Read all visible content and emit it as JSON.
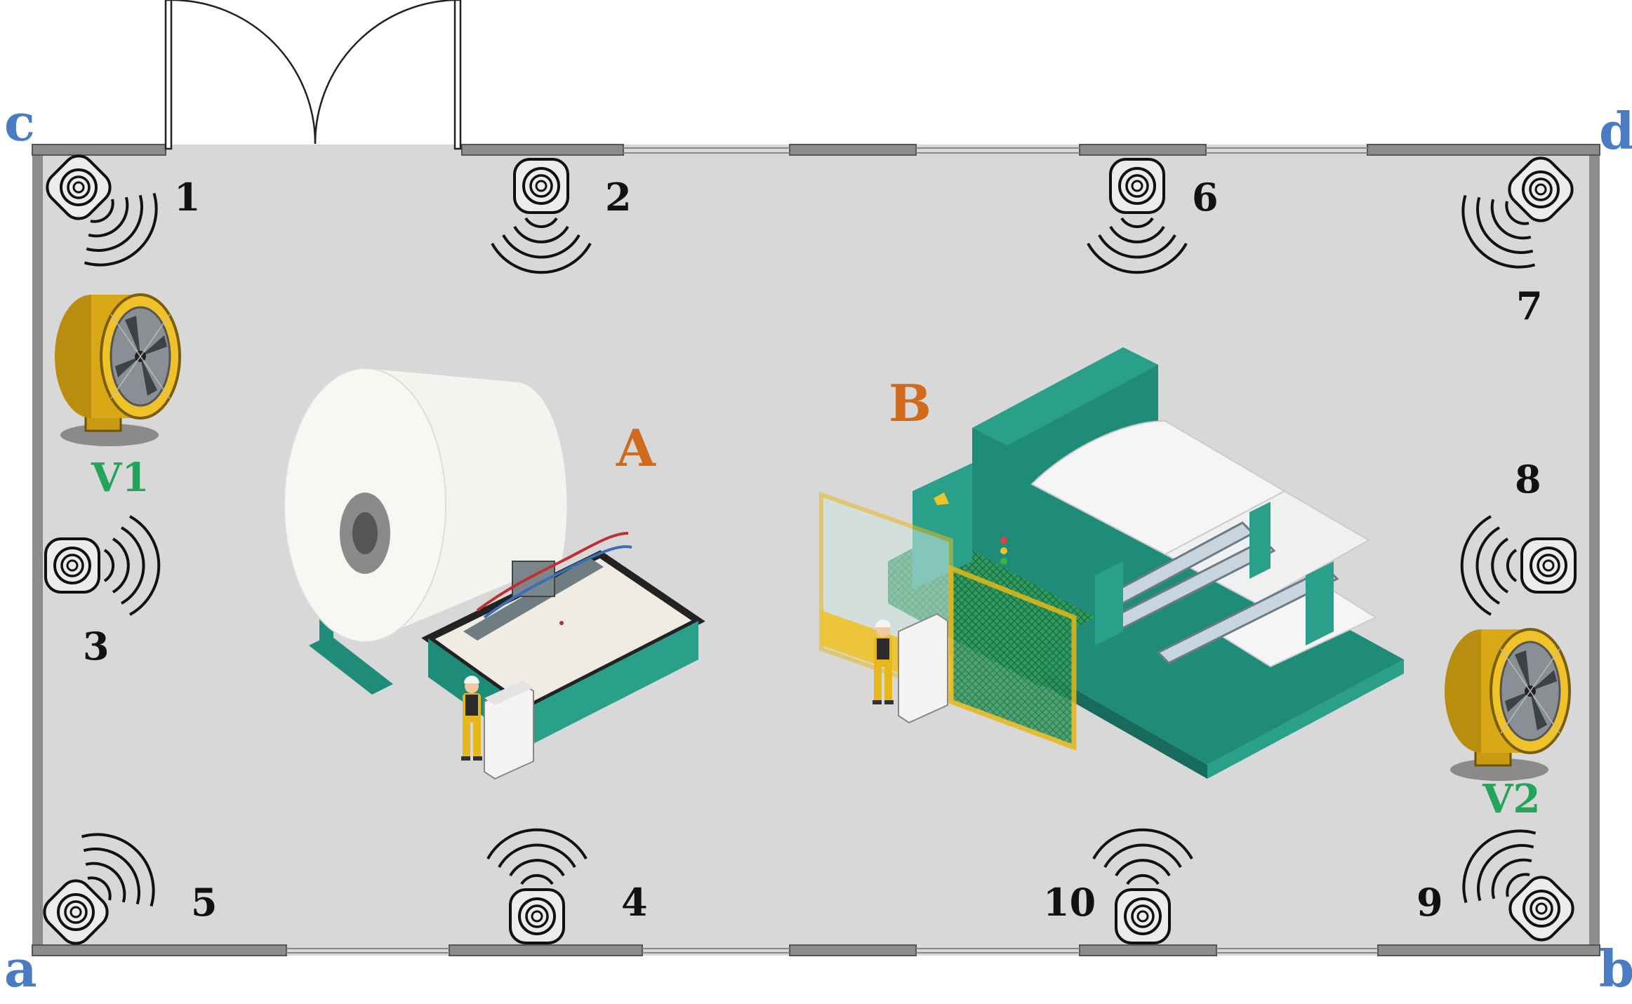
{
  "colors": {
    "floor": "#d8d8d8",
    "wall": "#8a8a8a",
    "corner_label": "#4a7cc4",
    "machine_label": "#d06a1d",
    "fan_label": "#22a45a",
    "machine_body": "#1f8c7a",
    "fan_yellow": "#e6b81c"
  },
  "corners": {
    "a": "a",
    "b": "b",
    "c": "c",
    "d": "d"
  },
  "sensors": {
    "s1": "1",
    "s2": "2",
    "s3": "3",
    "s4": "4",
    "s5": "5",
    "s6": "6",
    "s7": "7",
    "s8": "8",
    "s9": "9",
    "s10": "10"
  },
  "machines": {
    "a": "A",
    "b": "B"
  },
  "fans": {
    "v1": "V1",
    "v2": "V2"
  }
}
